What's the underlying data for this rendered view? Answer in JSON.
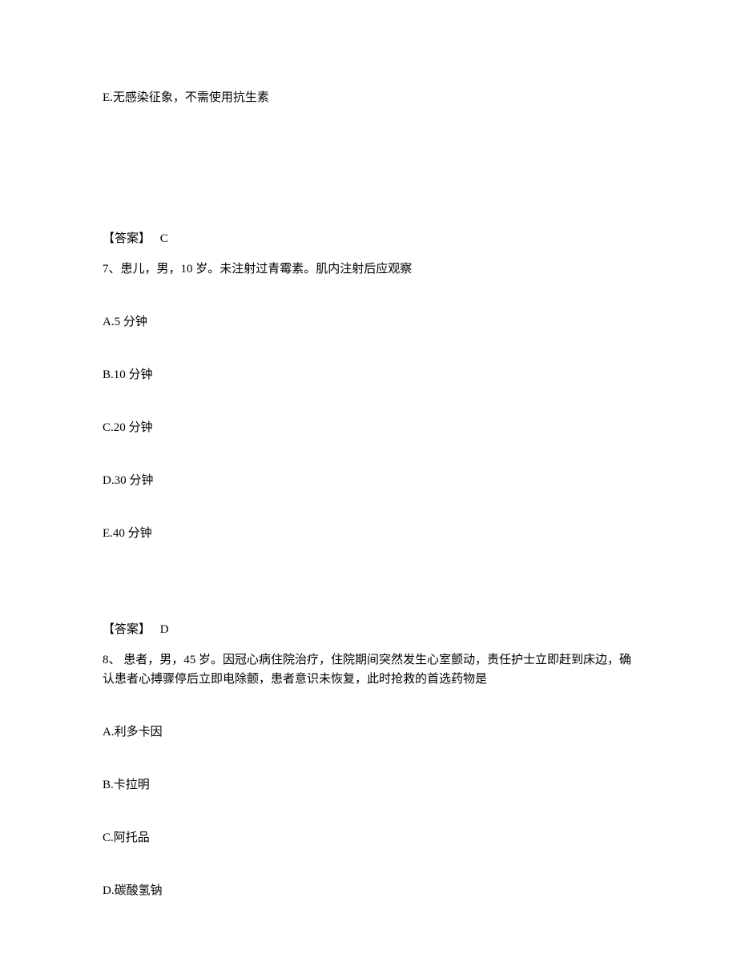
{
  "section_before": {
    "option_e": "E.无感染征象，不需使用抗生素"
  },
  "q7": {
    "answer_label": "【答案】",
    "answer_value": "C",
    "stem": "7、患儿，男，10 岁。未注射过青霉素。肌内注射后应观察",
    "options": {
      "a": "A.5 分钟",
      "b": "B.10 分钟",
      "c": "C.20 分钟",
      "d": "D.30 分钟",
      "e": "E.40 分钟"
    }
  },
  "q8": {
    "answer_label": "【答案】",
    "answer_value": "D",
    "stem": "8、 患者，男，45 岁。因冠心病住院治疗，住院期间突然发生心室颤动，责任护士立即赶到床边，确认患者心搏骤停后立即电除颤，患者意识未恢复，此时抢救的首选药物是",
    "options": {
      "a": "A.利多卡因",
      "b": "B.卡拉明",
      "c": "C.阿托品",
      "d": "D.碳酸氢钠"
    }
  }
}
